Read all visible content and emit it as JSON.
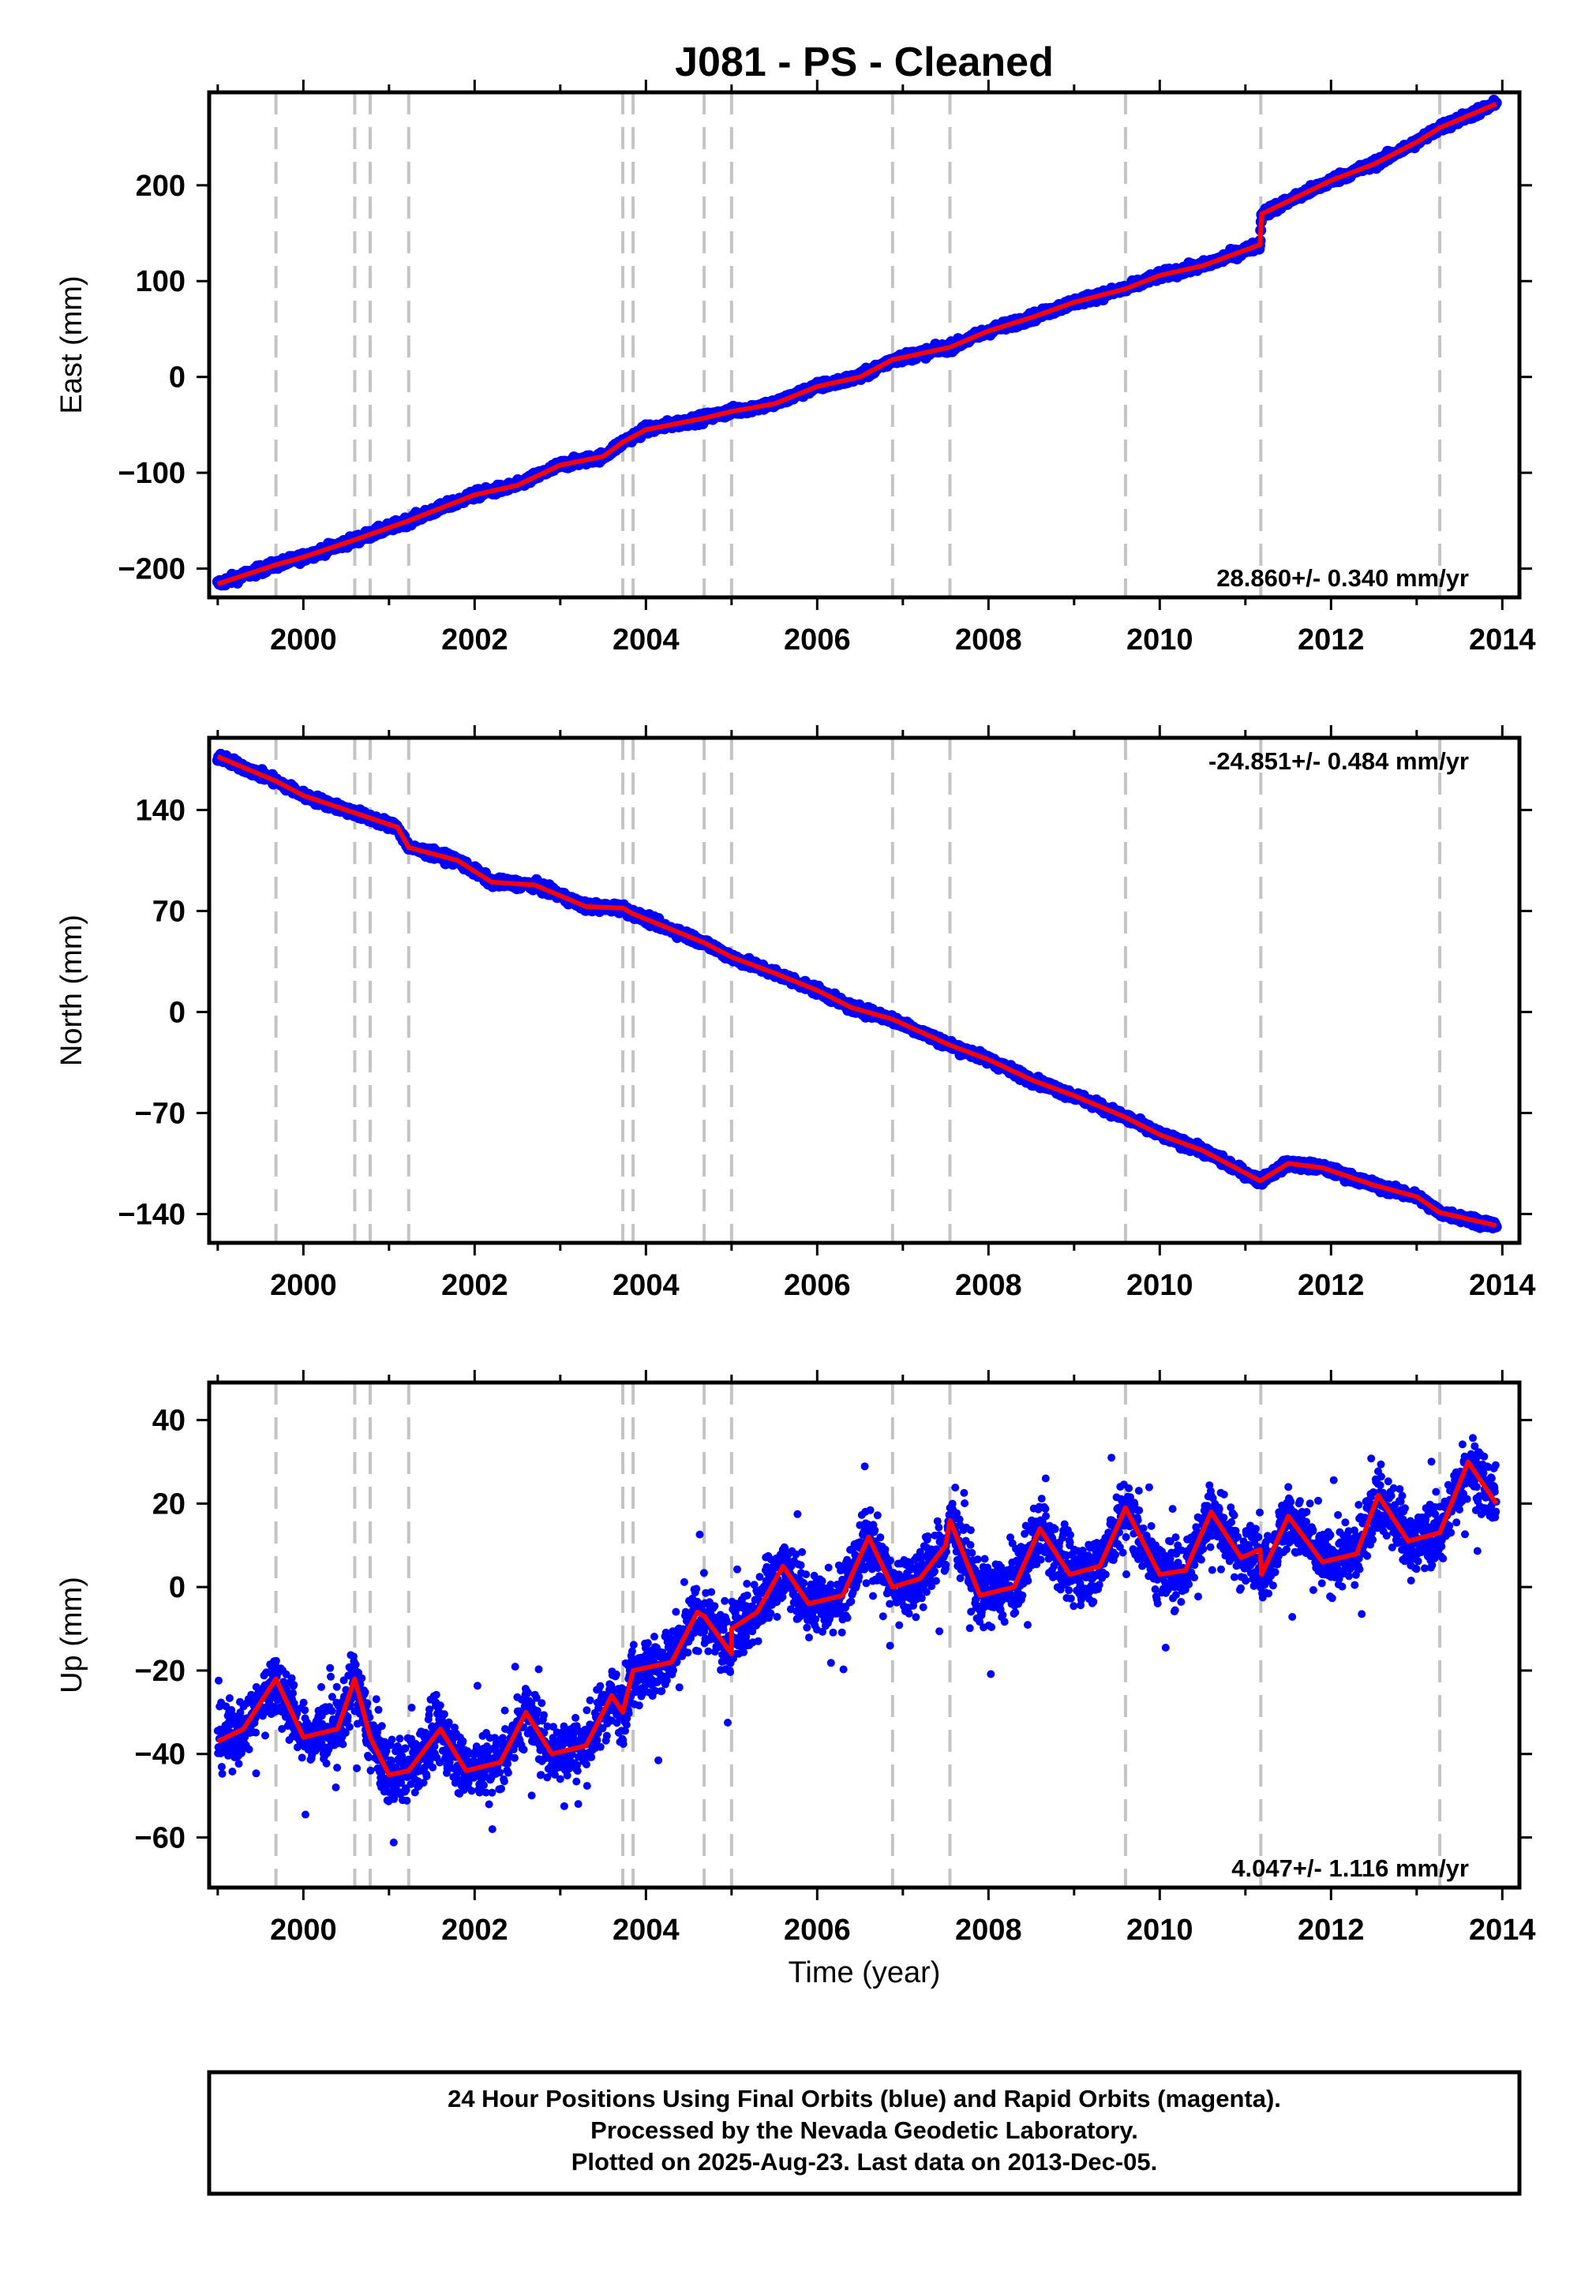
{
  "chart_data": {
    "type": "scatter",
    "title": "J081  - PS - Cleaned",
    "xlabel": "Time (year)",
    "xlim": [
      1998.9,
      2014.2
    ],
    "xticks": [
      2000,
      2002,
      2004,
      2006,
      2008,
      2010,
      2012,
      2014
    ],
    "xtick_labels": [
      "2000",
      "2002",
      "2004",
      "2006",
      "2008",
      "2010",
      "2012",
      "2014"
    ],
    "event_lines": [
      1999.68,
      2000.6,
      2000.78,
      2001.23,
      2003.73,
      2003.85,
      2004.68,
      2005.0,
      2006.88,
      2007.55,
      2009.6,
      2011.18,
      2013.27
    ],
    "colors": {
      "data": "#0000ff",
      "model": "#ff0000",
      "event_line": "#c4c4c4",
      "frame": "#000000"
    },
    "panels": [
      {
        "name": "east",
        "ylabel": "East (mm)",
        "ylim": [
          -230,
          297
        ],
        "yticks": [
          -200,
          -100,
          0,
          100,
          200
        ],
        "ytick_labels": [
          "−200",
          "−100",
          "0",
          "100",
          "200"
        ],
        "rate_label": "28.860+/- 0.340 mm/yr",
        "rate_position": "bottom-right",
        "series": [
          {
            "values": [
              [
                1999.0,
                -216
              ],
              [
                1999.68,
                -196
              ],
              [
                2000.0,
                -188
              ],
              [
                2000.6,
                -170
              ],
              [
                2001.23,
                -150
              ],
              [
                2002.0,
                -123
              ],
              [
                2002.5,
                -113
              ],
              [
                2003.0,
                -92
              ],
              [
                2003.5,
                -83
              ],
              [
                2003.73,
                -68
              ],
              [
                2004.0,
                -55
              ],
              [
                2004.68,
                -43
              ],
              [
                2005.0,
                -36
              ],
              [
                2005.5,
                -28
              ],
              [
                2006.0,
                -10
              ],
              [
                2006.5,
                0
              ],
              [
                2006.88,
                18
              ],
              [
                2007.55,
                31
              ],
              [
                2008.0,
                48
              ],
              [
                2008.5,
                62
              ],
              [
                2009.0,
                78
              ],
              [
                2009.6,
                92
              ],
              [
                2010.0,
                106
              ],
              [
                2010.5,
                116
              ],
              [
                2011.17,
                138
              ],
              [
                2011.19,
                170
              ],
              [
                2012.0,
                205
              ],
              [
                2012.5,
                222
              ],
              [
                2013.0,
                245
              ],
              [
                2013.27,
                260
              ],
              [
                2013.93,
                285
              ]
            ]
          }
        ]
      },
      {
        "name": "north",
        "ylabel": "North (mm)",
        "ylim": [
          -160,
          190
        ],
        "yticks": [
          -140,
          -70,
          0,
          70,
          140
        ],
        "ytick_labels": [
          "−140",
          "−70",
          "0",
          "70",
          "140"
        ],
        "rate_label": "-24.851+/- 0.484 mm/yr",
        "rate_position": "top-right",
        "series": [
          {
            "values": [
              [
                1999.0,
                177
              ],
              [
                1999.68,
                160
              ],
              [
                2000.0,
                150
              ],
              [
                2000.6,
                138
              ],
              [
                2001.1,
                128
              ],
              [
                2001.23,
                114
              ],
              [
                2001.8,
                105
              ],
              [
                2002.2,
                90
              ],
              [
                2002.7,
                88
              ],
              [
                2003.3,
                73
              ],
              [
                2003.73,
                72
              ],
              [
                2003.85,
                68
              ],
              [
                2004.68,
                48
              ],
              [
                2005.0,
                38
              ],
              [
                2005.5,
                27
              ],
              [
                2006.0,
                15
              ],
              [
                2006.4,
                3
              ],
              [
                2006.88,
                -5
              ],
              [
                2007.55,
                -23
              ],
              [
                2008.0,
                -33
              ],
              [
                2008.5,
                -47
              ],
              [
                2009.0,
                -58
              ],
              [
                2009.6,
                -73
              ],
              [
                2010.0,
                -85
              ],
              [
                2010.5,
                -96
              ],
              [
                2011.17,
                -117
              ],
              [
                2011.5,
                -105
              ],
              [
                2011.9,
                -108
              ],
              [
                2012.5,
                -120
              ],
              [
                2013.0,
                -128
              ],
              [
                2013.27,
                -139
              ],
              [
                2013.93,
                -148
              ]
            ]
          }
        ]
      },
      {
        "name": "up",
        "ylabel": "Up (mm)",
        "ylim": [
          -72,
          49
        ],
        "yticks": [
          -60,
          -40,
          -20,
          0,
          20,
          40
        ],
        "ytick_labels": [
          "−60",
          "−40",
          "−20",
          "0",
          "20",
          "40"
        ],
        "rate_label": "4.047+/- 1.116 mm/yr",
        "rate_position": "bottom-right",
        "model_breaks": [
          2000.6,
          2000.78,
          2001.23,
          2003.73,
          2003.85,
          2004.68,
          2005.0,
          2006.88,
          2007.55,
          2009.6,
          2011.18,
          2013.27
        ],
        "series": [
          {
            "values": [
              [
                1999.0,
                -37
              ],
              [
                1999.3,
                -34
              ],
              [
                1999.68,
                -22
              ],
              [
                2000.0,
                -36
              ],
              [
                2000.4,
                -34
              ],
              [
                2000.6,
                -22
              ],
              [
                2000.78,
                -36
              ],
              [
                2001.0,
                -45
              ],
              [
                2001.23,
                -44
              ],
              [
                2001.6,
                -34
              ],
              [
                2001.9,
                -44
              ],
              [
                2002.3,
                -42
              ],
              [
                2002.6,
                -30
              ],
              [
                2002.9,
                -40
              ],
              [
                2003.3,
                -38
              ],
              [
                2003.6,
                -26
              ],
              [
                2003.73,
                -30
              ],
              [
                2003.85,
                -20
              ],
              [
                2004.3,
                -18
              ],
              [
                2004.6,
                -6
              ],
              [
                2004.68,
                -7
              ],
              [
                2005.0,
                -16
              ],
              [
                2005.0,
                -10
              ],
              [
                2005.3,
                -6
              ],
              [
                2005.6,
                5
              ],
              [
                2005.9,
                -4
              ],
              [
                2006.3,
                -2
              ],
              [
                2006.6,
                12
              ],
              [
                2006.88,
                0
              ],
              [
                2007.2,
                2
              ],
              [
                2007.5,
                10
              ],
              [
                2007.55,
                16
              ],
              [
                2007.9,
                -2
              ],
              [
                2008.3,
                0
              ],
              [
                2008.6,
                14
              ],
              [
                2008.95,
                3
              ],
              [
                2009.3,
                5
              ],
              [
                2009.6,
                19
              ],
              [
                2010.0,
                3
              ],
              [
                2010.3,
                4
              ],
              [
                2010.6,
                18
              ],
              [
                2010.95,
                7
              ],
              [
                2011.17,
                9
              ],
              [
                2011.19,
                3
              ],
              [
                2011.5,
                17
              ],
              [
                2011.9,
                6
              ],
              [
                2012.3,
                8
              ],
              [
                2012.55,
                22
              ],
              [
                2012.9,
                11
              ],
              [
                2013.27,
                13
              ],
              [
                2013.6,
                30
              ],
              [
                2013.93,
                20
              ]
            ]
          }
        ]
      }
    ]
  },
  "footer": {
    "lines": [
      "24 Hour Positions Using Final Orbits (blue) and Rapid Orbits (magenta).",
      "Processed by the Nevada Geodetic Laboratory.",
      "Plotted on 2025-Aug-23. Last data on 2013-Dec-05."
    ]
  }
}
